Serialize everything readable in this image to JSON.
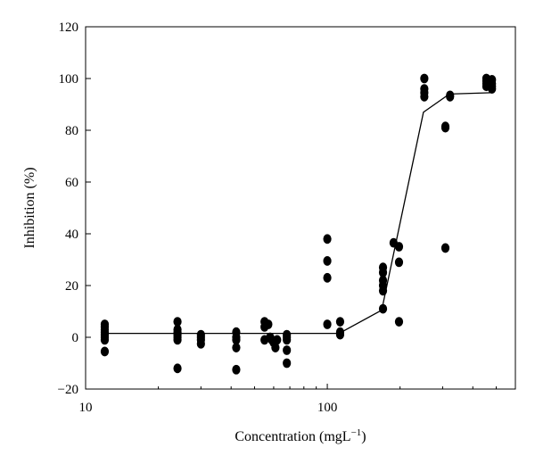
{
  "chart_data": {
    "type": "scatter",
    "xscale": "log",
    "xlabel": "Concentration (mgL",
    "xlabel_sup": "−1",
    "xlabel_close": ")",
    "ylabel": "Inhibition (%)",
    "xlim": [
      10,
      600
    ],
    "ylim": [
      -20,
      120
    ],
    "x_ticks": [
      {
        "value": 10,
        "label": "10"
      },
      {
        "value": 100,
        "label": "100"
      }
    ],
    "x_minor_ticks": [
      20,
      30,
      40,
      50,
      60,
      70,
      80,
      90,
      200,
      300,
      400,
      500
    ],
    "y_ticks": [
      {
        "value": -20,
        "label": "−20"
      },
      {
        "value": 0,
        "label": "0"
      },
      {
        "value": 20,
        "label": "20"
      },
      {
        "value": 40,
        "label": "40"
      },
      {
        "value": 60,
        "label": "60"
      },
      {
        "value": 80,
        "label": "80"
      },
      {
        "value": 100,
        "label": "100"
      },
      {
        "value": 120,
        "label": "120"
      }
    ],
    "grid": false,
    "series": [
      {
        "kind": "points",
        "points": [
          [
            12,
            5
          ],
          [
            12,
            4
          ],
          [
            12,
            3
          ],
          [
            12,
            2
          ],
          [
            12,
            1
          ],
          [
            12,
            0
          ],
          [
            12,
            -1
          ],
          [
            12,
            -5.5
          ],
          [
            24,
            6
          ],
          [
            24,
            3
          ],
          [
            24,
            2
          ],
          [
            24,
            1
          ],
          [
            24,
            0
          ],
          [
            24,
            -1
          ],
          [
            24,
            -12
          ],
          [
            30,
            1
          ],
          [
            30,
            0
          ],
          [
            30,
            -1
          ],
          [
            30,
            -2.5
          ],
          [
            42,
            2
          ],
          [
            42,
            0
          ],
          [
            42,
            -1
          ],
          [
            42,
            -4
          ],
          [
            42,
            -12.5
          ],
          [
            55,
            6
          ],
          [
            55,
            4
          ],
          [
            55,
            -1
          ],
          [
            57,
            5
          ],
          [
            58,
            0
          ],
          [
            59,
            -1
          ],
          [
            60,
            -2
          ],
          [
            61,
            -4
          ],
          [
            62,
            -1
          ],
          [
            68,
            1
          ],
          [
            68,
            0
          ],
          [
            68,
            -1
          ],
          [
            68,
            -5
          ],
          [
            68,
            -10
          ],
          [
            100,
            38
          ],
          [
            100,
            29.5
          ],
          [
            100,
            23
          ],
          [
            100,
            5
          ],
          [
            113,
            6
          ],
          [
            113,
            2
          ],
          [
            113,
            1
          ],
          [
            170,
            27
          ],
          [
            170,
            25
          ],
          [
            170,
            22
          ],
          [
            170,
            20
          ],
          [
            170,
            18
          ],
          [
            170,
            11
          ],
          [
            188,
            36.5
          ],
          [
            198,
            35
          ],
          [
            198,
            29
          ],
          [
            198,
            6
          ],
          [
            252,
            100
          ],
          [
            252,
            96
          ],
          [
            252,
            94.5
          ],
          [
            252,
            93
          ],
          [
            308,
            81.5
          ],
          [
            308,
            81
          ],
          [
            308,
            34.5
          ],
          [
            322,
            93.5
          ],
          [
            322,
            93
          ],
          [
            455,
            100
          ],
          [
            455,
            99
          ],
          [
            455,
            98
          ],
          [
            455,
            97
          ],
          [
            480,
            99.5
          ],
          [
            480,
            98
          ],
          [
            480,
            97
          ],
          [
            480,
            96
          ]
        ]
      },
      {
        "kind": "line",
        "points": [
          [
            12,
            1.5
          ],
          [
            112,
            1.5
          ],
          [
            168,
            10.5
          ],
          [
            250,
            87
          ],
          [
            320,
            94
          ],
          [
            480,
            94.5
          ]
        ]
      }
    ]
  }
}
